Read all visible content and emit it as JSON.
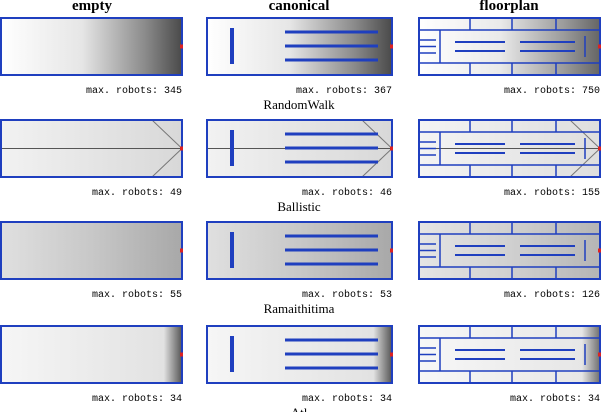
{
  "columns": [
    "empty",
    "canonical",
    "floorplan"
  ],
  "rows": [
    {
      "captions": [
        "max. robots: 345",
        "max. robots: 367",
        "max. robots: 750"
      ],
      "label": "RandomWalk"
    },
    {
      "captions": [
        "max. robots: 49",
        "max. robots: 46",
        "max. robots: 155"
      ],
      "label": "Ballistic"
    },
    {
      "captions": [
        "max. robots: 55",
        "max. robots: 53",
        "max. robots: 126"
      ],
      "label": "Ramaithitima"
    },
    {
      "captions": [
        "max. robots: 34",
        "max. robots: 34",
        "max. robots: 34"
      ],
      "label": "Atl"
    }
  ]
}
